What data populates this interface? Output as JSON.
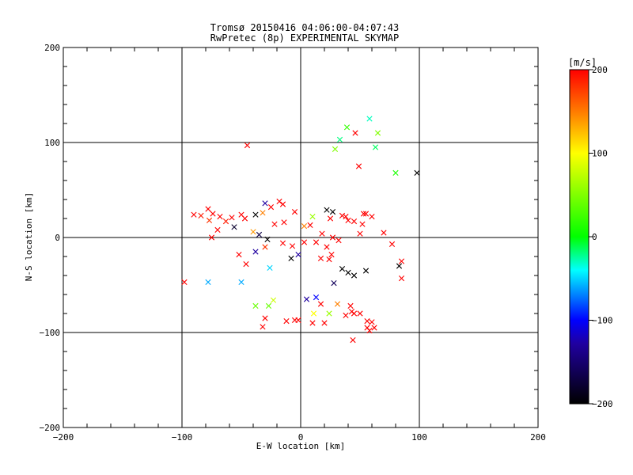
{
  "chart_data": {
    "type": "scatter",
    "title": "Tromsø 20150416 04:06:00-04:07:43",
    "subtitle": "RwPretec (8p) EXPERIMENTAL SKYMAP",
    "xlabel": "E-W location [km]",
    "ylabel": "N-S location [km]",
    "xlim": [
      -200,
      200
    ],
    "ylim": [
      -200,
      200
    ],
    "x_ticks": [
      "-200",
      "-100",
      "0",
      "100",
      "200"
    ],
    "y_ticks": [
      "-200",
      "-100",
      "0",
      "100",
      "200"
    ],
    "grid": "lines at ±100 and 0",
    "colorbar": {
      "label": "[m/s]",
      "range": [
        -200,
        200
      ],
      "ticks": [
        "-200",
        "-100",
        "0",
        "100",
        "200"
      ],
      "colors": [
        "#000000",
        "#0000ff",
        "#00ffff",
        "#00ff00",
        "#ffff00",
        "#ff8000",
        "#ff0000"
      ]
    },
    "series": [
      {
        "marker": "x",
        "points": [
          [
            -98,
            -47,
            200
          ],
          [
            -78,
            -47,
            -60
          ],
          [
            -90,
            24,
            200
          ],
          [
            -84,
            23,
            190
          ],
          [
            -78,
            30,
            200
          ],
          [
            -74,
            25,
            200
          ],
          [
            -68,
            22,
            200
          ],
          [
            -77,
            18,
            180
          ],
          [
            -63,
            17,
            190
          ],
          [
            -58,
            21,
            200
          ],
          [
            -50,
            24,
            200
          ],
          [
            -47,
            20,
            200
          ],
          [
            -56,
            11,
            -180
          ],
          [
            -70,
            8,
            200
          ],
          [
            -75,
            0,
            200
          ],
          [
            -45,
            97,
            200
          ],
          [
            -38,
            24,
            -200
          ],
          [
            -30,
            36,
            -130
          ],
          [
            -32,
            26,
            150
          ],
          [
            -25,
            32,
            200
          ],
          [
            -18,
            38,
            200
          ],
          [
            -15,
            35,
            200
          ],
          [
            -22,
            14,
            200
          ],
          [
            -14,
            16,
            200
          ],
          [
            -40,
            6,
            140
          ],
          [
            -35,
            3,
            -170
          ],
          [
            -28,
            -2,
            -200
          ],
          [
            -30,
            -10,
            180
          ],
          [
            -38,
            -15,
            -130
          ],
          [
            -52,
            -18,
            200
          ],
          [
            -50,
            -47,
            -60
          ],
          [
            -46,
            -28,
            200
          ],
          [
            -26,
            -32,
            -50
          ],
          [
            -15,
            -6,
            200
          ],
          [
            -8,
            -22,
            -200
          ],
          [
            -2,
            -18,
            -130
          ],
          [
            3,
            12,
            150
          ],
          [
            10,
            22,
            60
          ],
          [
            22,
            29,
            -200
          ],
          [
            27,
            27,
            -200
          ],
          [
            35,
            23,
            200
          ],
          [
            25,
            20,
            200
          ],
          [
            40,
            18,
            200
          ],
          [
            45,
            17,
            200
          ],
          [
            52,
            14,
            200
          ],
          [
            53,
            25,
            200
          ],
          [
            55,
            25,
            200
          ],
          [
            60,
            22,
            200
          ],
          [
            50,
            4,
            200
          ],
          [
            70,
            5,
            200
          ],
          [
            77,
            -7,
            200
          ],
          [
            85,
            -25,
            200
          ],
          [
            83,
            -30,
            -200
          ],
          [
            85,
            -43,
            200
          ],
          [
            24,
            -23,
            200
          ],
          [
            35,
            -33,
            -200
          ],
          [
            40,
            -37,
            -200
          ],
          [
            45,
            -40,
            -200
          ],
          [
            55,
            -35,
            -200
          ],
          [
            28,
            -48,
            -160
          ],
          [
            38,
            22,
            200
          ],
          [
            39,
            116,
            20
          ],
          [
            33,
            103,
            -20
          ],
          [
            29,
            93,
            50
          ],
          [
            46,
            110,
            200
          ],
          [
            49,
            75,
            200
          ],
          [
            58,
            125,
            -30
          ],
          [
            65,
            110,
            50
          ],
          [
            63,
            95,
            -15
          ],
          [
            80,
            68,
            10
          ],
          [
            98,
            68,
            -200
          ],
          [
            5,
            -65,
            -130
          ],
          [
            13,
            -63,
            -100
          ],
          [
            17,
            -70,
            200
          ],
          [
            24,
            -80,
            60
          ],
          [
            31,
            -70,
            150
          ],
          [
            42,
            -72,
            200
          ],
          [
            43,
            -78,
            200
          ],
          [
            50,
            -80,
            200
          ],
          [
            45,
            -80,
            200
          ],
          [
            38,
            -82,
            200
          ],
          [
            56,
            -88,
            200
          ],
          [
            60,
            -89,
            200
          ],
          [
            62,
            -95,
            200
          ],
          [
            56,
            -95,
            200
          ],
          [
            58,
            -98,
            200
          ],
          [
            44,
            -108,
            200
          ],
          [
            10,
            -90,
            200
          ],
          [
            20,
            -90,
            200
          ],
          [
            -2,
            -87,
            200
          ],
          [
            -5,
            -87,
            200
          ],
          [
            -12,
            -88,
            200
          ],
          [
            -32,
            -94,
            200
          ],
          [
            -23,
            -66,
            80
          ],
          [
            -27,
            -72,
            40
          ],
          [
            -38,
            -72,
            40
          ],
          [
            -30,
            -85,
            200
          ],
          [
            11,
            -80,
            100
          ],
          [
            -5,
            27,
            200
          ],
          [
            8,
            13,
            200
          ],
          [
            18,
            4,
            200
          ],
          [
            27,
            0,
            200
          ],
          [
            32,
            -3,
            200
          ],
          [
            -7,
            -9,
            200
          ],
          [
            3,
            -5,
            200
          ],
          [
            13,
            -5,
            200
          ],
          [
            22,
            -10,
            200
          ],
          [
            17,
            -22,
            200
          ],
          [
            26,
            -18,
            200
          ]
        ]
      }
    ]
  }
}
